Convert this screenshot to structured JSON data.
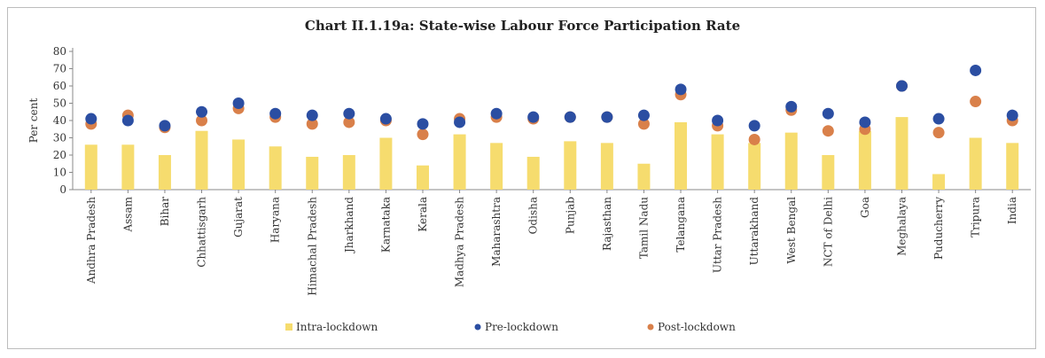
{
  "chart_data": {
    "type": "bar",
    "title": "Chart II.1.19a: State-wise Labour Force Participation Rate",
    "ylabel": "Per cent",
    "xlabel": "",
    "ylim": [
      0,
      80
    ],
    "yticks": [
      0,
      10,
      20,
      30,
      40,
      50,
      60,
      70,
      80
    ],
    "grid": false,
    "legend_position": "bottom",
    "categories": [
      "Andhra Pradesh",
      "Assam",
      "Bihar",
      "Chhattisgarh",
      "Gujarat",
      "Haryana",
      "Himachal Pradesh",
      "Jharkhand",
      "Karnataka",
      "Kerala",
      "Madhya Pradesh",
      "Maharashtra",
      "Odisha",
      "Punjab",
      "Rajasthan",
      "Tamil Nadu",
      "Telangana",
      "Uttar Pradesh",
      "Uttarakhand",
      "West Bengal",
      "NCT of Delhi",
      "Goa",
      "Meghalaya",
      "Puducherry",
      "Tripura",
      "India"
    ],
    "series": [
      {
        "name": "Intra-lockdown",
        "kind": "bar",
        "color": "#f6dc6e",
        "values": [
          26,
          26,
          20,
          34,
          29,
          25,
          19,
          20,
          30,
          14,
          32,
          27,
          19,
          28,
          27,
          15,
          39,
          32,
          27,
          33,
          20,
          34,
          42,
          9,
          30,
          27
        ]
      },
      {
        "name": "Pre-lockdown",
        "kind": "dot",
        "color": "#2b4ea2",
        "values": [
          41,
          40,
          37,
          45,
          50,
          44,
          43,
          44,
          41,
          38,
          39,
          44,
          42,
          42,
          42,
          43,
          58,
          40,
          37,
          48,
          44,
          39,
          60,
          41,
          69,
          43
        ]
      },
      {
        "name": "Post-lockdown",
        "kind": "dot",
        "color": "#d9804a",
        "values": [
          38,
          43,
          36,
          40,
          47,
          42,
          38,
          39,
          40,
          32,
          41,
          42,
          41,
          42,
          42,
          38,
          55,
          37,
          29,
          46,
          34,
          35,
          60,
          33,
          51,
          40
        ]
      }
    ]
  }
}
